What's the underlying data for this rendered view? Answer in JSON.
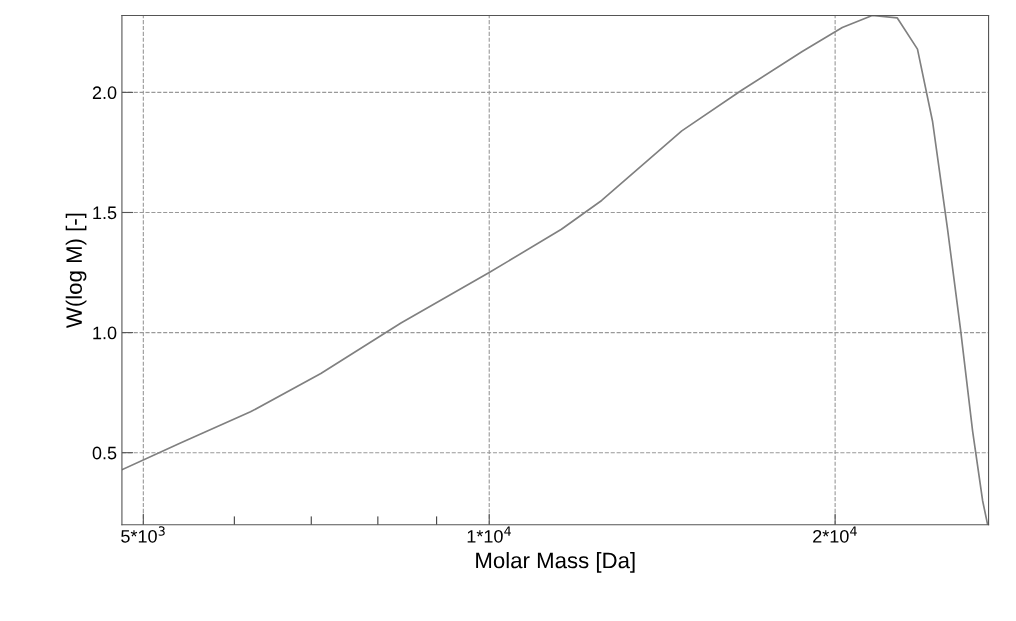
{
  "chart_data": {
    "type": "line",
    "xlabel": "Molar Mass [Da]",
    "ylabel": "W(log M) [-]",
    "log": "x",
    "x": [
      4796,
      5386,
      6198,
      7136,
      8379,
      10000,
      11557,
      12527,
      14709,
      16596,
      18724,
      20289,
      21544,
      22654,
      23588,
      24310,
      25055,
      25718,
      26344,
      26878,
      27150
    ],
    "series": [
      {
        "color": "#808080",
        "values": [
          0.43,
          0.54,
          0.67,
          0.83,
          1.04,
          1.25,
          1.43,
          1.55,
          1.84,
          2.01,
          2.17,
          2.27,
          2.32,
          2.31,
          2.18,
          1.88,
          1.43,
          1.01,
          0.59,
          0.3,
          0.2
        ]
      }
    ],
    "xlim": [
      4790,
      27200
    ],
    "ylim": [
      0.2,
      2.32
    ],
    "xticks": [
      {
        "value": 5000,
        "label": "5*10$^{3}$"
      },
      {
        "value": 6000,
        "label": null
      },
      {
        "value": 7000,
        "label": null
      },
      {
        "value": 8000,
        "label": null
      },
      {
        "value": 9000,
        "label": null
      },
      {
        "value": 10000,
        "label": "1*10$^{4}$"
      },
      {
        "value": 20000,
        "label": "2*10$^{4}$"
      }
    ],
    "yticks": [
      {
        "value": 0.5,
        "label": "0.5"
      },
      {
        "value": 1,
        "label": "1.0"
      },
      {
        "value": 1.5,
        "label": "1.5"
      },
      {
        "value": 2,
        "label": "2.0"
      }
    ],
    "grid": true,
    "marker": "none",
    "line_style": "solid"
  }
}
